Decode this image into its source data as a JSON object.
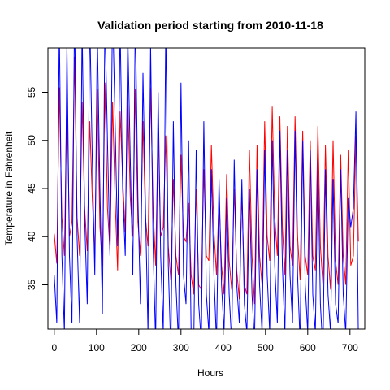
{
  "chart_data": {
    "type": "line",
    "title": "Validation period starting from 2010-11-18",
    "xlabel": "Hours",
    "ylabel": "Temperature in Fahrenheit",
    "xlim": [
      -15,
      735
    ],
    "ylim": [
      30.4,
      59.6
    ],
    "x_ticks": [
      0,
      100,
      200,
      300,
      400,
      500,
      600,
      700
    ],
    "y_ticks": [
      35,
      40,
      45,
      50,
      55
    ],
    "grid": false,
    "legend": "none",
    "series": [
      {
        "color": "#ff0000",
        "x": [
          0,
          6,
          12,
          18,
          24,
          30,
          36,
          42,
          48,
          54,
          60,
          66,
          72,
          78,
          84,
          90,
          96,
          102,
          108,
          114,
          120,
          126,
          132,
          138,
          144,
          150,
          156,
          162,
          168,
          174,
          180,
          186,
          192,
          198,
          204,
          210,
          216,
          222,
          228,
          234,
          240,
          246,
          252,
          258,
          264,
          270,
          276,
          282,
          288,
          294,
          300,
          306,
          312,
          318,
          324,
          330,
          336,
          342,
          348,
          354,
          360,
          366,
          372,
          378,
          384,
          390,
          396,
          402,
          408,
          414,
          420,
          426,
          432,
          438,
          444,
          450,
          456,
          462,
          468,
          474,
          480,
          486,
          492,
          498,
          504,
          510,
          516,
          522,
          528,
          534,
          540,
          546,
          552,
          558,
          564,
          570,
          576,
          582,
          588,
          594,
          600,
          606,
          612,
          618,
          624,
          630,
          636,
          642,
          648,
          654,
          660,
          666,
          672,
          678,
          684,
          690,
          696,
          702,
          708,
          714,
          720
        ],
        "y": [
          40.3,
          37.2,
          55.5,
          42.0,
          38.0,
          55.0,
          40.0,
          41.5,
          58.7,
          42.0,
          38.0,
          54.0,
          43.0,
          38.5,
          52.0,
          44.0,
          38.0,
          55.3,
          41.0,
          37.0,
          56.0,
          43.0,
          38.5,
          54.0,
          44.0,
          36.5,
          53.0,
          46.0,
          40.5,
          54.5,
          44.0,
          40.0,
          55.3,
          41.5,
          38.0,
          52.0,
          42.0,
          39.0,
          55.5,
          43.0,
          37.0,
          51.5,
          40.0,
          41.0,
          50.5,
          39.0,
          35.5,
          46.0,
          38.0,
          36.0,
          48.5,
          40.0,
          39.5,
          43.5,
          36.0,
          34.0,
          45.0,
          35.0,
          34.5,
          47.0,
          38.0,
          37.5,
          49.5,
          40.5,
          36.0,
          44.0,
          37.0,
          34.0,
          46.5,
          37.5,
          34.5,
          45.0,
          36.5,
          33.5,
          44.5,
          35.0,
          34.0,
          49.0,
          38.0,
          33.0,
          49.5,
          38.0,
          35.0,
          52.0,
          40.0,
          37.5,
          53.5,
          42.0,
          38.0,
          52.5,
          41.0,
          36.0,
          51.5,
          39.0,
          37.0,
          52.5,
          40.0,
          35.5,
          51.0,
          38.0,
          36.0,
          50.0,
          38.0,
          36.5,
          51.5,
          39.0,
          35.0,
          49.5,
          38.0,
          34.5,
          50.0,
          37.5,
          35.0,
          48.5,
          38.0,
          35.0,
          49.0,
          37.0,
          38.0,
          50.5,
          39.5
        ]
      },
      {
        "color": "#0000ff",
        "x": [
          0,
          6,
          12,
          18,
          24,
          30,
          36,
          42,
          48,
          54,
          60,
          66,
          72,
          78,
          84,
          90,
          96,
          102,
          108,
          114,
          120,
          126,
          132,
          138,
          144,
          150,
          156,
          162,
          168,
          174,
          180,
          186,
          192,
          198,
          204,
          210,
          216,
          222,
          228,
          234,
          240,
          246,
          252,
          258,
          264,
          270,
          276,
          282,
          288,
          294,
          300,
          306,
          312,
          318,
          324,
          330,
          336,
          342,
          348,
          354,
          360,
          366,
          372,
          378,
          384,
          390,
          396,
          402,
          408,
          414,
          420,
          426,
          432,
          438,
          444,
          450,
          456,
          462,
          468,
          474,
          480,
          486,
          492,
          498,
          504,
          510,
          516,
          522,
          528,
          534,
          540,
          546,
          552,
          558,
          564,
          570,
          576,
          582,
          588,
          594,
          600,
          606,
          612,
          618,
          624,
          630,
          636,
          642,
          648,
          654,
          660,
          666,
          672,
          678,
          684,
          690,
          696,
          702,
          708,
          714,
          720
        ],
        "y": [
          36.0,
          31.0,
          62.0,
          38.0,
          30.0,
          60.0,
          38.0,
          31.0,
          64.0,
          40.0,
          31.0,
          62.0,
          42.0,
          33.0,
          63.0,
          48.0,
          36.0,
          61.0,
          45.0,
          32.0,
          63.0,
          50.0,
          38.0,
          64.0,
          52.0,
          39.0,
          62.0,
          45.0,
          38.0,
          61.0,
          48.0,
          36.0,
          63.0,
          44.0,
          33.0,
          57.0,
          43.0,
          30.0,
          60.0,
          39.0,
          29.0,
          55.0,
          38.0,
          30.0,
          62.0,
          37.0,
          28.0,
          52.0,
          35.0,
          29.0,
          56.0,
          36.0,
          33.0,
          50.0,
          30.0,
          28.0,
          49.0,
          33.0,
          29.0,
          52.0,
          34.0,
          30.0,
          47.0,
          36.0,
          29.0,
          46.0,
          35.0,
          30.0,
          44.0,
          34.0,
          29.0,
          48.0,
          35.0,
          31.0,
          46.0,
          33.0,
          30.0,
          45.0,
          34.0,
          29.0,
          47.0,
          35.0,
          30.0,
          49.0,
          36.0,
          30.0,
          50.0,
          37.0,
          31.0,
          51.0,
          37.0,
          30.0,
          49.0,
          36.0,
          31.0,
          51.0,
          36.0,
          29.0,
          50.0,
          35.0,
          30.0,
          49.0,
          34.0,
          30.0,
          48.0,
          33.0,
          28.0,
          47.0,
          34.0,
          30.0,
          46.0,
          33.0,
          31.0,
          47.0,
          34.0,
          30.0,
          44.0,
          41.0,
          43.0,
          53.0,
          29.0
        ]
      }
    ]
  }
}
